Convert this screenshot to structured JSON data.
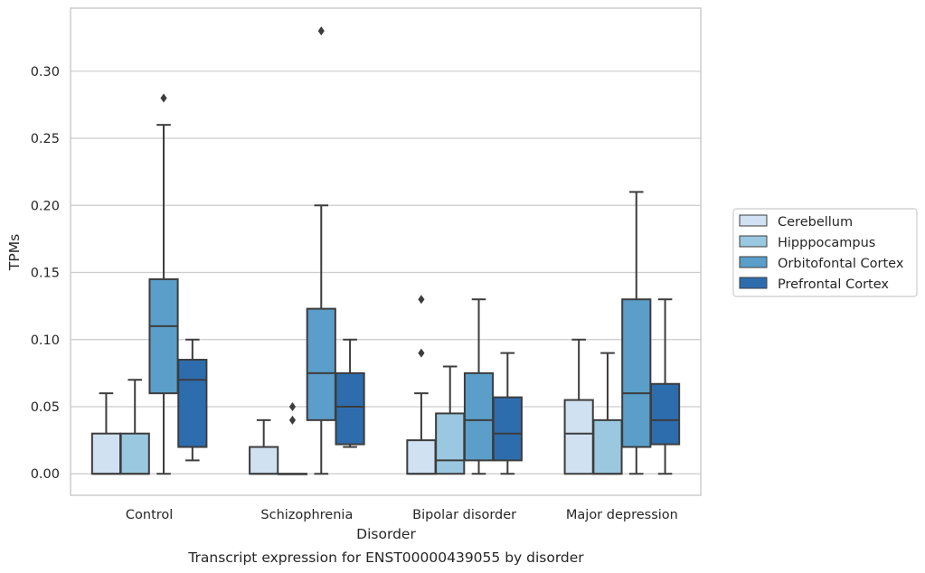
{
  "chart_data": {
    "type": "box",
    "caption": "Transcript expression for ENST00000439055 by disorder",
    "xlabel": "Disorder",
    "ylabel": "TPMs",
    "ylim": [
      -0.016,
      0.347
    ],
    "yticks": [
      "0.00",
      "0.05",
      "0.10",
      "0.15",
      "0.20",
      "0.25",
      "0.30"
    ],
    "grid": true,
    "legend_position": "right",
    "categories": [
      "Control",
      "Schizophrenia",
      "Bipolar disorder",
      "Major depression"
    ],
    "series": [
      {
        "name": "Cerebellum",
        "color": "#d0e1f2",
        "boxes": [
          {
            "whisker_low": 0.0,
            "q1": 0.0,
            "median": 0.0,
            "q3": 0.03,
            "whisker_high": 0.06,
            "outliers": []
          },
          {
            "whisker_low": 0.0,
            "q1": 0.0,
            "median": 0.0,
            "q3": 0.02,
            "whisker_high": 0.04,
            "outliers": []
          },
          {
            "whisker_low": 0.0,
            "q1": 0.0,
            "median": 0.0,
            "q3": 0.025,
            "whisker_high": 0.06,
            "outliers": [
              0.09,
              0.13
            ]
          },
          {
            "whisker_low": 0.0,
            "q1": 0.0,
            "median": 0.03,
            "q3": 0.055,
            "whisker_high": 0.1,
            "outliers": []
          }
        ]
      },
      {
        "name": "Hipppocampus",
        "color": "#9ac8e0",
        "boxes": [
          {
            "whisker_low": 0.0,
            "q1": 0.0,
            "median": 0.0,
            "q3": 0.03,
            "whisker_high": 0.07,
            "outliers": []
          },
          {
            "whisker_low": 0.0,
            "q1": 0.0,
            "median": 0.0,
            "q3": 0.0,
            "whisker_high": 0.0,
            "outliers": [
              0.04,
              0.05
            ]
          },
          {
            "whisker_low": 0.0,
            "q1": 0.0,
            "median": 0.01,
            "q3": 0.045,
            "whisker_high": 0.08,
            "outliers": []
          },
          {
            "whisker_low": 0.0,
            "q1": 0.0,
            "median": 0.0,
            "q3": 0.04,
            "whisker_high": 0.09,
            "outliers": []
          }
        ]
      },
      {
        "name": "Orbitofontal Cortex",
        "color": "#5a9ec9",
        "boxes": [
          {
            "whisker_low": 0.0,
            "q1": 0.06,
            "median": 0.11,
            "q3": 0.145,
            "whisker_high": 0.26,
            "outliers": [
              0.28
            ]
          },
          {
            "whisker_low": 0.0,
            "q1": 0.04,
            "median": 0.075,
            "q3": 0.123,
            "whisker_high": 0.2,
            "outliers": [
              0.33
            ]
          },
          {
            "whisker_low": 0.0,
            "q1": 0.01,
            "median": 0.04,
            "q3": 0.075,
            "whisker_high": 0.13,
            "outliers": []
          },
          {
            "whisker_low": 0.0,
            "q1": 0.02,
            "median": 0.06,
            "q3": 0.13,
            "whisker_high": 0.21,
            "outliers": []
          }
        ]
      },
      {
        "name": "Prefrontal Cortex",
        "color": "#2d6dae",
        "boxes": [
          {
            "whisker_low": 0.01,
            "q1": 0.02,
            "median": 0.07,
            "q3": 0.085,
            "whisker_high": 0.1,
            "outliers": []
          },
          {
            "whisker_low": 0.02,
            "q1": 0.022,
            "median": 0.05,
            "q3": 0.075,
            "whisker_high": 0.1,
            "outliers": []
          },
          {
            "whisker_low": 0.0,
            "q1": 0.01,
            "median": 0.03,
            "q3": 0.057,
            "whisker_high": 0.09,
            "outliers": []
          },
          {
            "whisker_low": 0.0,
            "q1": 0.022,
            "median": 0.04,
            "q3": 0.067,
            "whisker_high": 0.13,
            "outliers": []
          }
        ]
      }
    ]
  }
}
